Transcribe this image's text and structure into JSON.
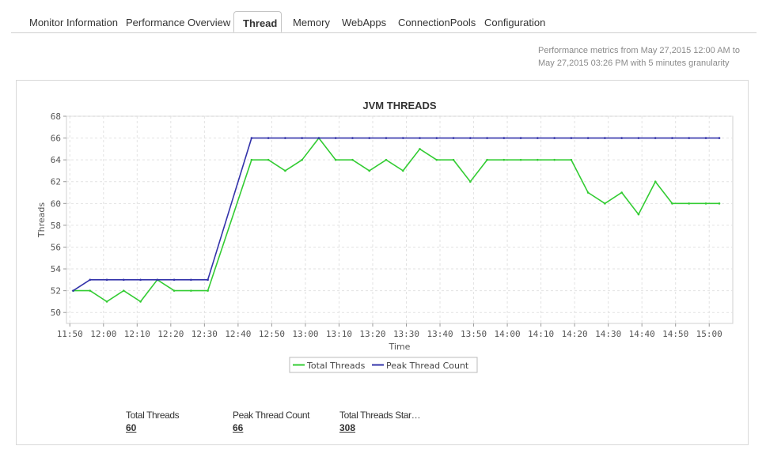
{
  "tabs": [
    {
      "label": "Monitor Information"
    },
    {
      "label": "Performance Overview"
    },
    {
      "label": "Thread",
      "active": true
    },
    {
      "label": "Memory"
    },
    {
      "label": "WebApps"
    },
    {
      "label": "ConnectionPools"
    },
    {
      "label": "Configuration"
    }
  ],
  "meta": {
    "line1": "Performance metrics from May 27,2015 12:00 AM to",
    "line2": "May 27,2015 03:26 PM with 5 minutes granularity"
  },
  "colors": {
    "total": "#33cc33",
    "peak": "#3333aa",
    "grid": "#e2e2e2"
  },
  "chart_data": {
    "type": "line",
    "title": "JVM THREADS",
    "xlabel": "Time",
    "ylabel": "Threads",
    "ylim": [
      49,
      68
    ],
    "yticks": [
      50,
      52,
      54,
      56,
      58,
      60,
      62,
      64,
      66,
      68
    ],
    "xlim": [
      "11:49",
      "15:07"
    ],
    "xticks": [
      "11:50",
      "12:00",
      "12:10",
      "12:20",
      "12:30",
      "12:40",
      "12:50",
      "13:00",
      "13:10",
      "13:20",
      "13:30",
      "13:40",
      "13:50",
      "14:00",
      "14:10",
      "14:20",
      "14:30",
      "14:40",
      "14:50",
      "15:00"
    ],
    "grid": true,
    "legend": "bottom-center",
    "series": [
      {
        "name": "Total Threads",
        "x": [
          "11:51",
          "11:56",
          "12:01",
          "12:06",
          "12:11",
          "12:16",
          "12:21",
          "12:26",
          "12:31",
          "12:44",
          "12:49",
          "12:54",
          "12:59",
          "13:04",
          "13:09",
          "13:14",
          "13:19",
          "13:24",
          "13:29",
          "13:34",
          "13:39",
          "13:44",
          "13:49",
          "13:54",
          "13:59",
          "14:04",
          "14:09",
          "14:14",
          "14:19",
          "14:24",
          "14:29",
          "14:34",
          "14:39",
          "14:44",
          "14:49",
          "14:54",
          "14:59",
          "15:03"
        ],
        "values": [
          52,
          52,
          51,
          52,
          51,
          53,
          52,
          52,
          52,
          64,
          64,
          63,
          64,
          66,
          64,
          64,
          63,
          64,
          63,
          65,
          64,
          64,
          62,
          64,
          64,
          64,
          64,
          64,
          64,
          61,
          60,
          61,
          59,
          62,
          60,
          60,
          60,
          60
        ]
      },
      {
        "name": "Peak Thread Count",
        "x": [
          "11:51",
          "11:56",
          "12:01",
          "12:06",
          "12:11",
          "12:16",
          "12:21",
          "12:26",
          "12:31",
          "12:44",
          "12:49",
          "12:54",
          "12:59",
          "13:04",
          "13:09",
          "13:14",
          "13:19",
          "13:24",
          "13:29",
          "13:34",
          "13:39",
          "13:44",
          "13:49",
          "13:54",
          "13:59",
          "14:04",
          "14:09",
          "14:14",
          "14:19",
          "14:24",
          "14:29",
          "14:34",
          "14:39",
          "14:44",
          "14:49",
          "14:54",
          "14:59",
          "15:03"
        ],
        "values": [
          52,
          53,
          53,
          53,
          53,
          53,
          53,
          53,
          53,
          66,
          66,
          66,
          66,
          66,
          66,
          66,
          66,
          66,
          66,
          66,
          66,
          66,
          66,
          66,
          66,
          66,
          66,
          66,
          66,
          66,
          66,
          66,
          66,
          66,
          66,
          66,
          66,
          66
        ]
      }
    ]
  },
  "stats": [
    {
      "label": "Total Threads",
      "value": "60"
    },
    {
      "label": "Peak Thread Count",
      "value": "66"
    },
    {
      "label": "Total Threads Star…",
      "value": "308"
    }
  ]
}
